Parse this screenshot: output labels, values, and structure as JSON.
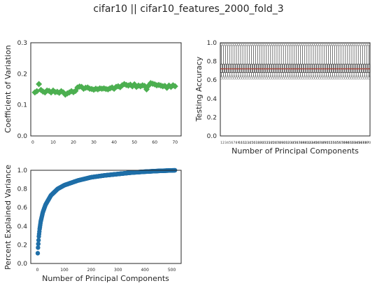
{
  "figure_title": "cifar10 || cifar10_features_2000_fold_3",
  "colors": {
    "cv_marker": "#4caf50",
    "box_median": "#c0392b",
    "box_line": "#1a1a1a",
    "box_flier": "#888888",
    "pev_marker": "#1f6fa8"
  },
  "chart_data": [
    {
      "id": "cv",
      "type": "scatter",
      "title": "",
      "xlabel": "",
      "ylabel": "Coefficient of Variation",
      "xlim": [
        -1,
        73
      ],
      "ylim": [
        0,
        0.3
      ],
      "xticks": [
        "0",
        "10",
        "20",
        "30",
        "40",
        "50",
        "60",
        "70"
      ],
      "yticks": [
        "0.0",
        "0.1",
        "0.2",
        "0.3"
      ],
      "marker": "diamond",
      "x": [
        1,
        2,
        3,
        4,
        5,
        6,
        7,
        8,
        9,
        10,
        11,
        12,
        13,
        14,
        15,
        16,
        17,
        18,
        19,
        20,
        21,
        22,
        23,
        24,
        25,
        26,
        27,
        28,
        29,
        30,
        31,
        32,
        33,
        34,
        35,
        36,
        37,
        38,
        39,
        40,
        41,
        42,
        43,
        44,
        45,
        46,
        47,
        48,
        49,
        50,
        51,
        52,
        53,
        54,
        55,
        56,
        57,
        58,
        59,
        60,
        61,
        62,
        63,
        64,
        65,
        66,
        67,
        68,
        69,
        70
      ],
      "y": [
        0.14,
        0.144,
        0.167,
        0.148,
        0.143,
        0.14,
        0.146,
        0.145,
        0.14,
        0.146,
        0.141,
        0.142,
        0.139,
        0.144,
        0.14,
        0.133,
        0.137,
        0.14,
        0.144,
        0.141,
        0.145,
        0.156,
        0.159,
        0.158,
        0.152,
        0.155,
        0.156,
        0.152,
        0.151,
        0.149,
        0.152,
        0.15,
        0.153,
        0.152,
        0.153,
        0.151,
        0.15,
        0.153,
        0.156,
        0.152,
        0.158,
        0.16,
        0.157,
        0.163,
        0.167,
        0.164,
        0.162,
        0.165,
        0.16,
        0.166,
        0.158,
        0.162,
        0.16,
        0.163,
        0.161,
        0.15,
        0.162,
        0.17,
        0.168,
        0.166,
        0.163,
        0.164,
        0.162,
        0.16,
        0.161,
        0.155,
        0.162,
        0.158,
        0.163,
        0.16
      ]
    },
    {
      "id": "acc",
      "type": "box",
      "title": "",
      "xlabel": "Number of Principal Components",
      "ylabel": "Testing Accuracy",
      "ylim": [
        0,
        1.0
      ],
      "yticks": [
        "0.0",
        "0.2",
        "0.4",
        "0.6",
        "0.8",
        "1.0"
      ],
      "n_boxes": 70,
      "xtick_labels": [
        "1",
        "2",
        "3",
        "4",
        "5",
        "6",
        "7",
        "8",
        "9",
        "10",
        "11",
        "12",
        "13",
        "14",
        "15",
        "16",
        "17",
        "18",
        "19",
        "20",
        "21",
        "22",
        "23",
        "24",
        "25",
        "26",
        "27",
        "28",
        "29",
        "30",
        "31",
        "32",
        "33",
        "34",
        "35",
        "36",
        "37",
        "38",
        "39",
        "40",
        "41",
        "42",
        "43",
        "44",
        "45",
        "46",
        "47",
        "48",
        "49",
        "50",
        "51",
        "52",
        "53",
        "54",
        "55",
        "56",
        "57",
        "58",
        "59",
        "60",
        "61",
        "62",
        "63",
        "64",
        "65",
        "66",
        "67",
        "68",
        "69",
        "70"
      ],
      "median": 0.72,
      "q1": 0.68,
      "q3": 0.77,
      "whisker_low": 0.64,
      "whisker_high": 0.97,
      "flier_high": 0.98,
      "flier_low": 0.62
    },
    {
      "id": "pev",
      "type": "scatter",
      "title": "",
      "xlabel": "Number of Principal Components",
      "ylabel": "Percent Explained Variance",
      "xlim": [
        -25,
        535
      ],
      "ylim": [
        0,
        1.0
      ],
      "xticks": [
        "0",
        "100",
        "200",
        "300",
        "400",
        "500"
      ],
      "yticks": [
        "0.0",
        "0.2",
        "0.4",
        "0.6",
        "0.8",
        "1.0"
      ],
      "n_points": 512,
      "curve_points": [
        [
          1,
          0.11
        ],
        [
          2,
          0.17
        ],
        [
          3,
          0.21
        ],
        [
          5,
          0.29
        ],
        [
          8,
          0.37
        ],
        [
          12,
          0.45
        ],
        [
          20,
          0.55
        ],
        [
          30,
          0.63
        ],
        [
          50,
          0.73
        ],
        [
          75,
          0.8
        ],
        [
          100,
          0.84
        ],
        [
          150,
          0.89
        ],
        [
          200,
          0.925
        ],
        [
          250,
          0.945
        ],
        [
          300,
          0.96
        ],
        [
          350,
          0.975
        ],
        [
          400,
          0.985
        ],
        [
          450,
          0.993
        ],
        [
          512,
          1.0
        ]
      ]
    }
  ]
}
